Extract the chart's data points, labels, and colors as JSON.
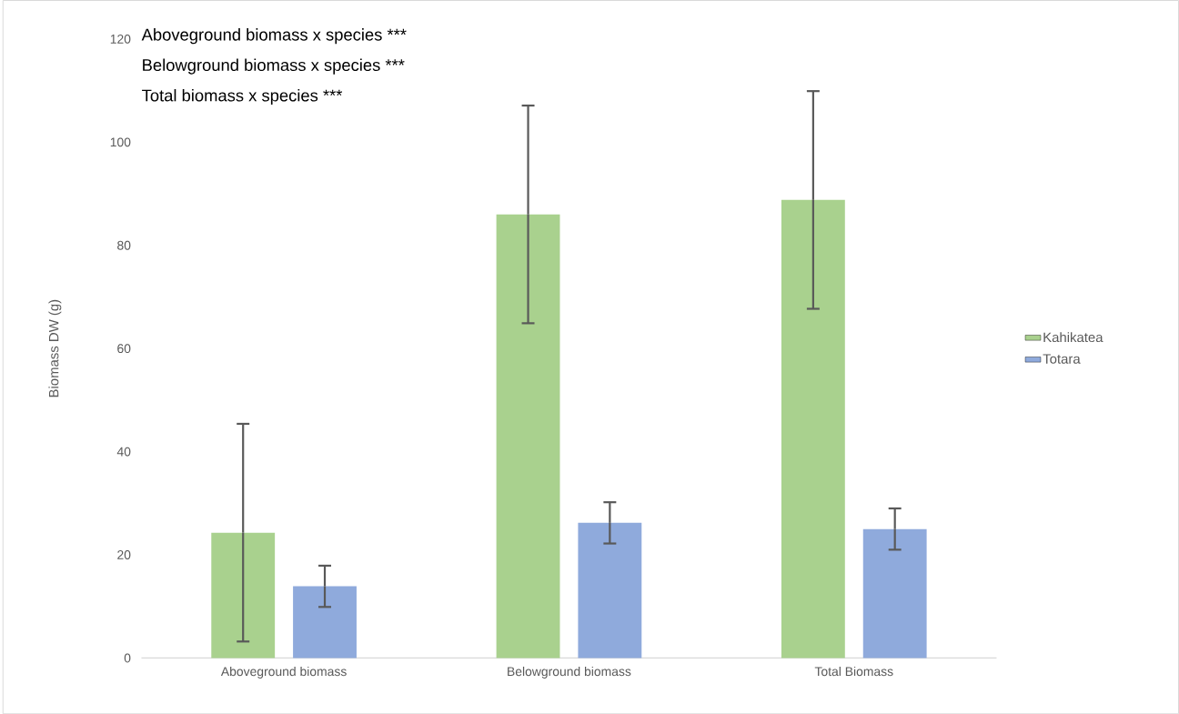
{
  "chart_data": {
    "type": "bar",
    "ylabel": "Biomass DW (g)",
    "annotations": [
      "Aboveground biomass x species ***",
      "Belowground biomass x species ***",
      "Total biomass x species  ***"
    ],
    "categories": [
      "Aboveground biomass",
      "Belowground biomass",
      "Total Biomass"
    ],
    "series": [
      {
        "name": "Kahikatea",
        "color": "#a9d18e",
        "values": [
          24.3,
          86.0,
          88.8
        ],
        "errors": [
          21.1,
          21.1,
          21.1
        ]
      },
      {
        "name": "Totara",
        "color": "#8faadc",
        "values": [
          13.9,
          26.2,
          25.0
        ],
        "errors": [
          4.0,
          4.0,
          4.0
        ]
      }
    ],
    "ylim": [
      0,
      120
    ],
    "yticks": [
      0,
      20,
      40,
      60,
      80,
      100,
      120
    ],
    "legend": "right"
  }
}
